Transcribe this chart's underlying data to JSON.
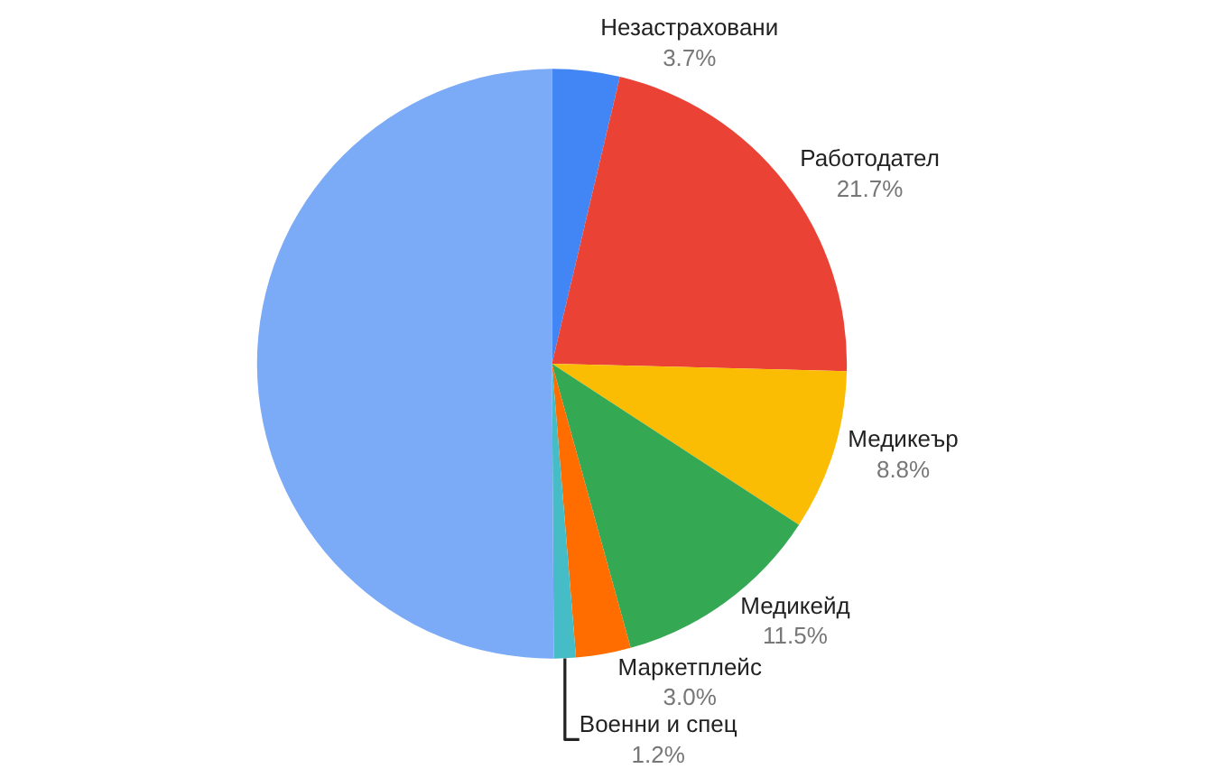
{
  "chart_data": {
    "type": "pie",
    "categories": [
      "Незастраховани",
      "Работодател",
      "Медикеър",
      "Медикейд",
      "Маркетплейс",
      "Военни и спец",
      null
    ],
    "values": [
      3.7,
      21.7,
      8.8,
      11.5,
      3.0,
      1.2,
      50.1
    ],
    "colors": [
      "#4285f4",
      "#ea4335",
      "#fbbc04",
      "#34a853",
      "#ff6d01",
      "#46bdc6",
      "#7baaf7"
    ],
    "value_labels": [
      "3.7%",
      "21.7%",
      "8.8%",
      "11.5%",
      "3.0%",
      "1.2%",
      null
    ],
    "legend": false
  }
}
